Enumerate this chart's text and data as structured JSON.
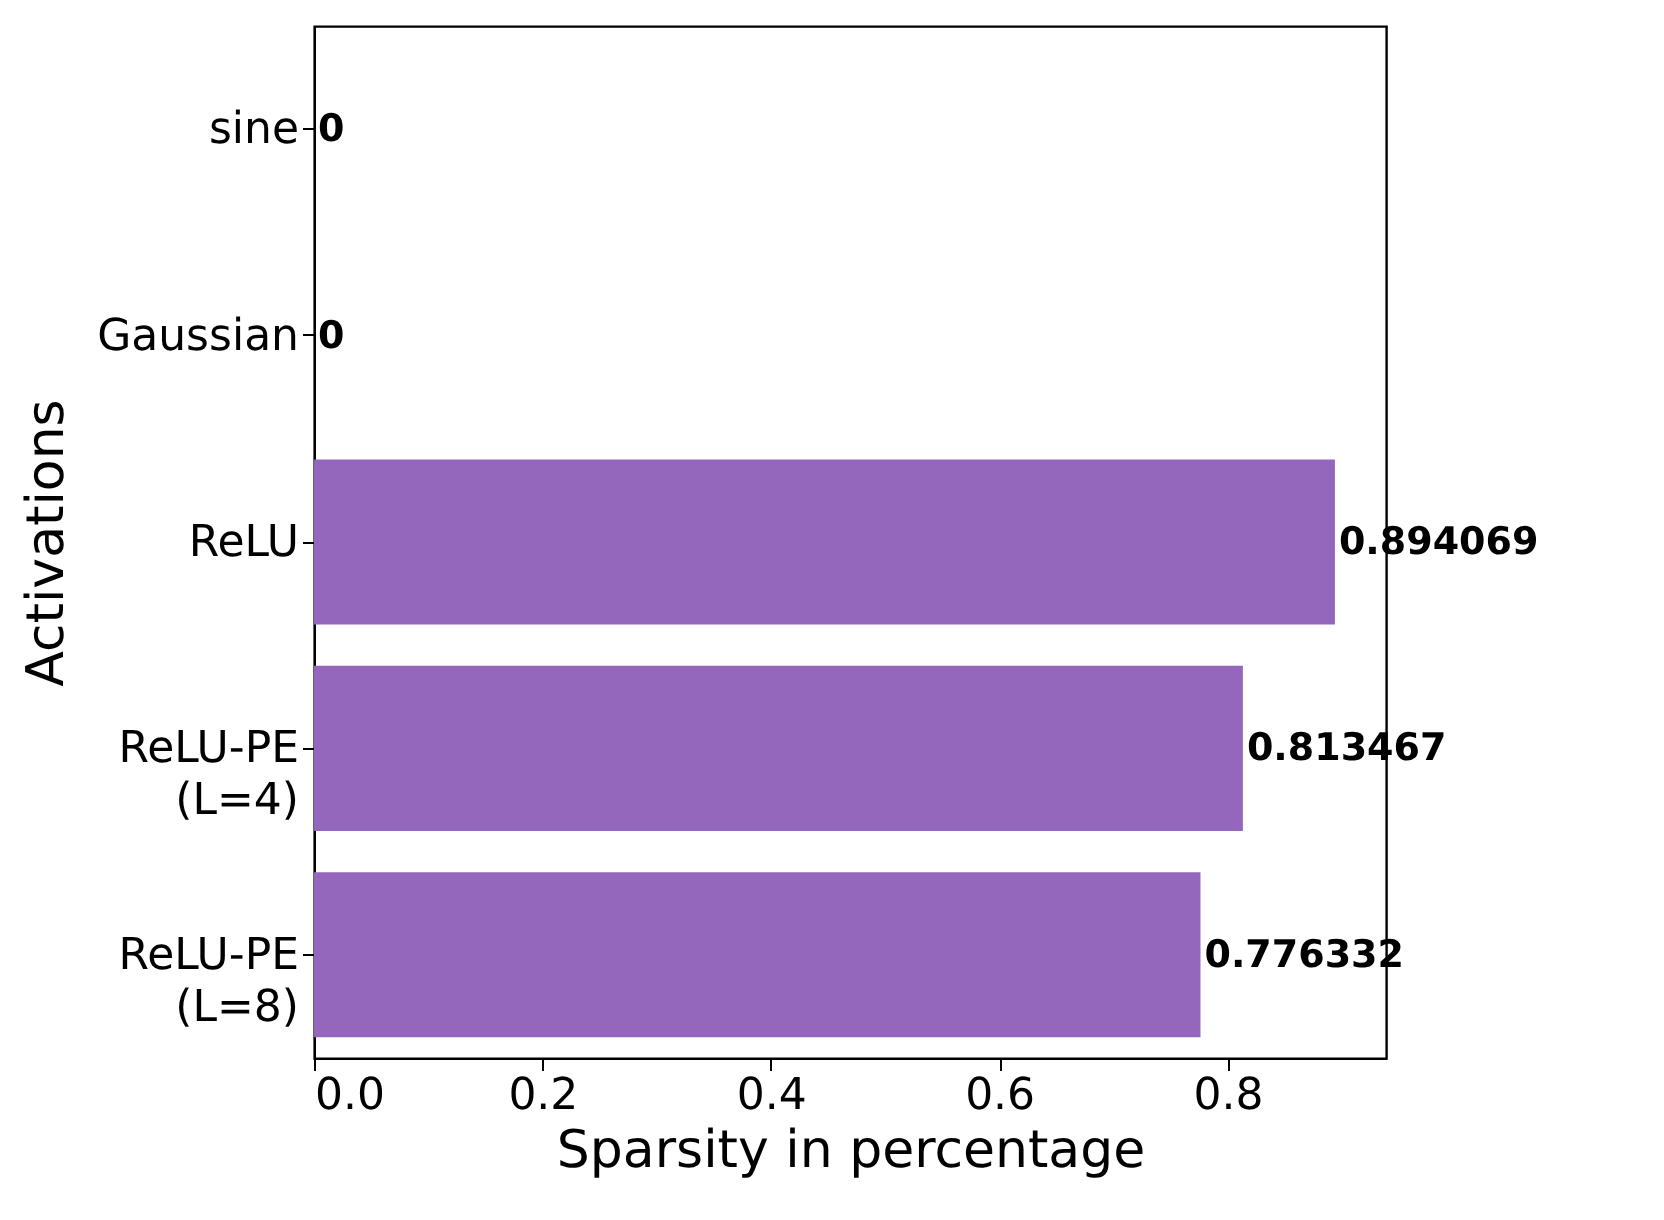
{
  "chart_data": {
    "type": "bar",
    "orientation": "horizontal",
    "xlabel": "Sparsity in percentage",
    "ylabel": "Activations",
    "categories": [
      "sine",
      "Gaussian",
      "ReLU",
      "ReLU-PE\n(L=4)",
      "ReLU-PE\n(L=8)"
    ],
    "values": [
      0,
      0,
      0.894069,
      0.813467,
      0.776332
    ],
    "color": "#9467bd",
    "data_labels": true,
    "xlim": [
      0,
      0.9388
    ],
    "xticks": [
      {
        "value": 0,
        "label": "0.0"
      },
      {
        "value": 0.2,
        "label": "0.2"
      },
      {
        "value": 0.4,
        "label": "0.4"
      },
      {
        "value": 0.6,
        "label": "0.6"
      },
      {
        "value": 0.8,
        "label": "0.8"
      }
    ],
    "grid": false
  }
}
